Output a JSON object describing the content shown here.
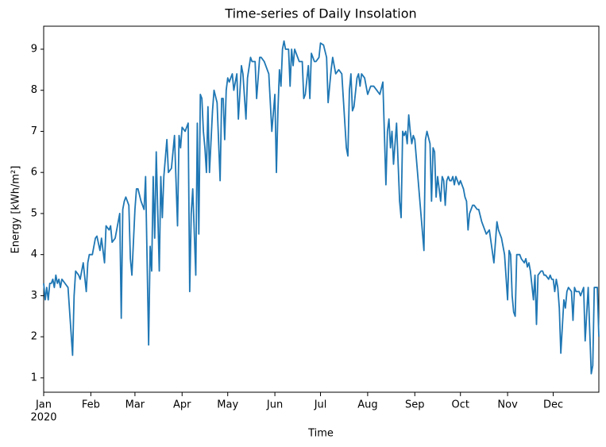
{
  "chart_data": {
    "type": "line",
    "title": "Time-series of Daily Insolation",
    "x_label": "Time",
    "y_label": "Energy [kWh/m²]",
    "x": [
      0,
      1,
      2,
      3,
      4,
      5,
      6,
      7,
      8,
      9,
      10,
      11,
      12,
      14,
      16,
      19,
      20,
      21,
      23,
      24,
      26,
      28,
      29,
      30,
      32,
      34,
      35,
      37,
      38,
      40,
      41,
      43,
      44,
      45,
      47,
      48,
      50,
      51,
      52,
      53,
      54,
      56,
      57,
      58,
      60,
      61,
      62,
      64,
      66,
      67,
      69,
      70,
      71,
      72,
      73,
      74,
      76,
      77,
      78,
      79,
      81,
      82,
      84,
      86,
      88,
      89,
      90,
      91,
      93,
      95,
      96,
      97,
      98,
      100,
      101,
      102,
      103,
      104,
      105,
      106,
      107,
      108,
      109,
      111,
      112,
      114,
      116,
      117,
      118,
      119,
      120,
      121,
      122,
      124,
      125,
      127,
      128,
      130,
      131,
      133,
      134,
      136,
      137,
      139,
      140,
      142,
      143,
      145,
      146,
      148,
      150,
      152,
      153,
      154,
      155,
      156,
      157,
      158,
      159,
      161,
      162,
      163,
      164,
      165,
      167,
      168,
      170,
      171,
      172,
      174,
      175,
      176,
      178,
      179,
      181,
      182,
      184,
      186,
      187,
      189,
      190,
      192,
      194,
      196,
      199,
      200,
      201,
      202,
      203,
      204,
      206,
      207,
      208,
      209,
      211,
      213,
      214,
      215,
      217,
      219,
      221,
      223,
      225,
      226,
      227,
      228,
      229,
      230,
      232,
      234,
      235,
      236,
      237,
      238,
      239,
      240,
      241,
      242,
      243,
      244,
      250,
      251,
      252,
      254,
      255,
      256,
      257,
      258,
      259,
      261,
      262,
      263,
      264,
      265,
      266,
      267,
      268,
      269,
      270,
      271,
      272,
      273,
      274,
      276,
      277,
      278,
      279,
      280,
      282,
      283,
      285,
      286,
      288,
      289,
      291,
      293,
      296,
      298,
      299,
      300,
      301,
      302,
      303,
      305,
      306,
      307,
      308,
      309,
      310,
      311,
      313,
      314,
      316,
      317,
      318,
      319,
      320,
      322,
      323,
      324,
      325,
      327,
      328,
      329,
      330,
      332,
      333,
      334,
      335,
      336,
      337,
      338,
      339,
      340,
      342,
      343,
      344,
      345,
      347,
      348,
      349,
      350,
      352,
      353,
      355,
      356,
      358,
      360,
      361,
      362,
      364,
      365
    ],
    "series": [
      {
        "color": "#1f77b4",
        "values": [
          3.3,
          2.9,
          3.2,
          2.9,
          3.3,
          3.3,
          3.4,
          3.2,
          3.5,
          3.3,
          3.4,
          3.2,
          3.4,
          3.3,
          3.2,
          1.55,
          3.0,
          3.6,
          3.5,
          3.4,
          3.8,
          3.1,
          3.8,
          4.0,
          4.0,
          4.4,
          4.45,
          4.1,
          4.4,
          3.8,
          4.7,
          4.6,
          4.7,
          4.3,
          4.4,
          4.6,
          5.0,
          2.45,
          5.1,
          5.3,
          5.4,
          5.2,
          3.9,
          3.5,
          5.1,
          5.6,
          5.6,
          5.3,
          5.1,
          5.9,
          1.8,
          4.2,
          3.6,
          5.9,
          4.4,
          6.5,
          3.6,
          5.9,
          4.9,
          5.9,
          6.8,
          6.0,
          6.1,
          6.9,
          4.7,
          6.9,
          6.6,
          7.1,
          7.0,
          7.2,
          3.1,
          5.0,
          5.6,
          3.5,
          7.2,
          4.5,
          7.9,
          7.8,
          7.0,
          6.6,
          6.0,
          7.6,
          6.0,
          7.5,
          8.0,
          7.7,
          5.8,
          7.8,
          7.8,
          6.8,
          8.0,
          8.3,
          8.2,
          8.4,
          8.0,
          8.4,
          7.3,
          8.6,
          8.4,
          7.3,
          8.3,
          8.8,
          8.7,
          8.7,
          7.8,
          8.8,
          8.8,
          8.7,
          8.6,
          8.4,
          7.0,
          7.9,
          6.0,
          7.5,
          8.5,
          8.1,
          9.0,
          9.2,
          9.0,
          9.0,
          8.1,
          9.0,
          8.6,
          9.0,
          8.8,
          8.7,
          8.7,
          7.8,
          7.9,
          8.6,
          7.8,
          8.9,
          8.7,
          8.7,
          8.8,
          9.15,
          9.1,
          8.8,
          7.7,
          8.5,
          8.8,
          8.4,
          8.5,
          8.4,
          6.6,
          6.4,
          8.0,
          8.4,
          7.5,
          7.6,
          8.3,
          8.4,
          8.1,
          8.4,
          8.3,
          7.9,
          8.0,
          8.1,
          8.1,
          8.0,
          7.9,
          8.2,
          5.7,
          7.0,
          7.3,
          6.6,
          7.0,
          6.2,
          7.2,
          5.3,
          4.9,
          7.0,
          6.9,
          7.0,
          6.7,
          7.4,
          7.0,
          6.7,
          6.9,
          6.8,
          4.1,
          6.8,
          7.0,
          6.7,
          5.3,
          6.6,
          6.5,
          5.4,
          5.9,
          5.3,
          5.9,
          5.8,
          5.2,
          5.8,
          5.9,
          5.8,
          5.8,
          5.9,
          5.7,
          5.9,
          5.8,
          5.7,
          5.8,
          5.6,
          5.4,
          5.3,
          4.6,
          5.0,
          5.2,
          5.2,
          5.1,
          5.1,
          4.8,
          4.7,
          4.5,
          4.6,
          3.8,
          4.8,
          4.6,
          4.5,
          4.4,
          4.2,
          4.0,
          2.9,
          4.1,
          4.0,
          3.0,
          2.6,
          2.5,
          4.0,
          4.0,
          3.9,
          3.8,
          3.9,
          3.7,
          3.8,
          3.6,
          2.9,
          3.5,
          2.3,
          3.5,
          3.6,
          3.6,
          3.5,
          3.5,
          3.4,
          3.5,
          3.4,
          3.4,
          3.1,
          3.4,
          3.2,
          2.7,
          1.6,
          2.9,
          2.7,
          3.1,
          3.2,
          3.1,
          2.4,
          3.2,
          3.1,
          3.1,
          3.0,
          3.2,
          1.9,
          3.2,
          1.1,
          1.3,
          3.2,
          3.2,
          2.0
        ]
      }
    ],
    "xlim": [
      0,
      365
    ],
    "xticks": [
      {
        "value": 0,
        "label": "Jan"
      },
      {
        "value": 31,
        "label": "Feb"
      },
      {
        "value": 60,
        "label": "Mar"
      },
      {
        "value": 91,
        "label": "Apr"
      },
      {
        "value": 121,
        "label": "May"
      },
      {
        "value": 152,
        "label": "Jun"
      },
      {
        "value": 182,
        "label": "Jul"
      },
      {
        "value": 213,
        "label": "Aug"
      },
      {
        "value": 244,
        "label": "Sep"
      },
      {
        "value": 274,
        "label": "Oct"
      },
      {
        "value": 305,
        "label": "Nov"
      },
      {
        "value": 335,
        "label": "Dec"
      }
    ],
    "x_year_label": "2020",
    "ylim": [
      0.65,
      9.56
    ],
    "yticks": [
      1,
      2,
      3,
      4,
      5,
      6,
      7,
      8,
      9
    ]
  }
}
